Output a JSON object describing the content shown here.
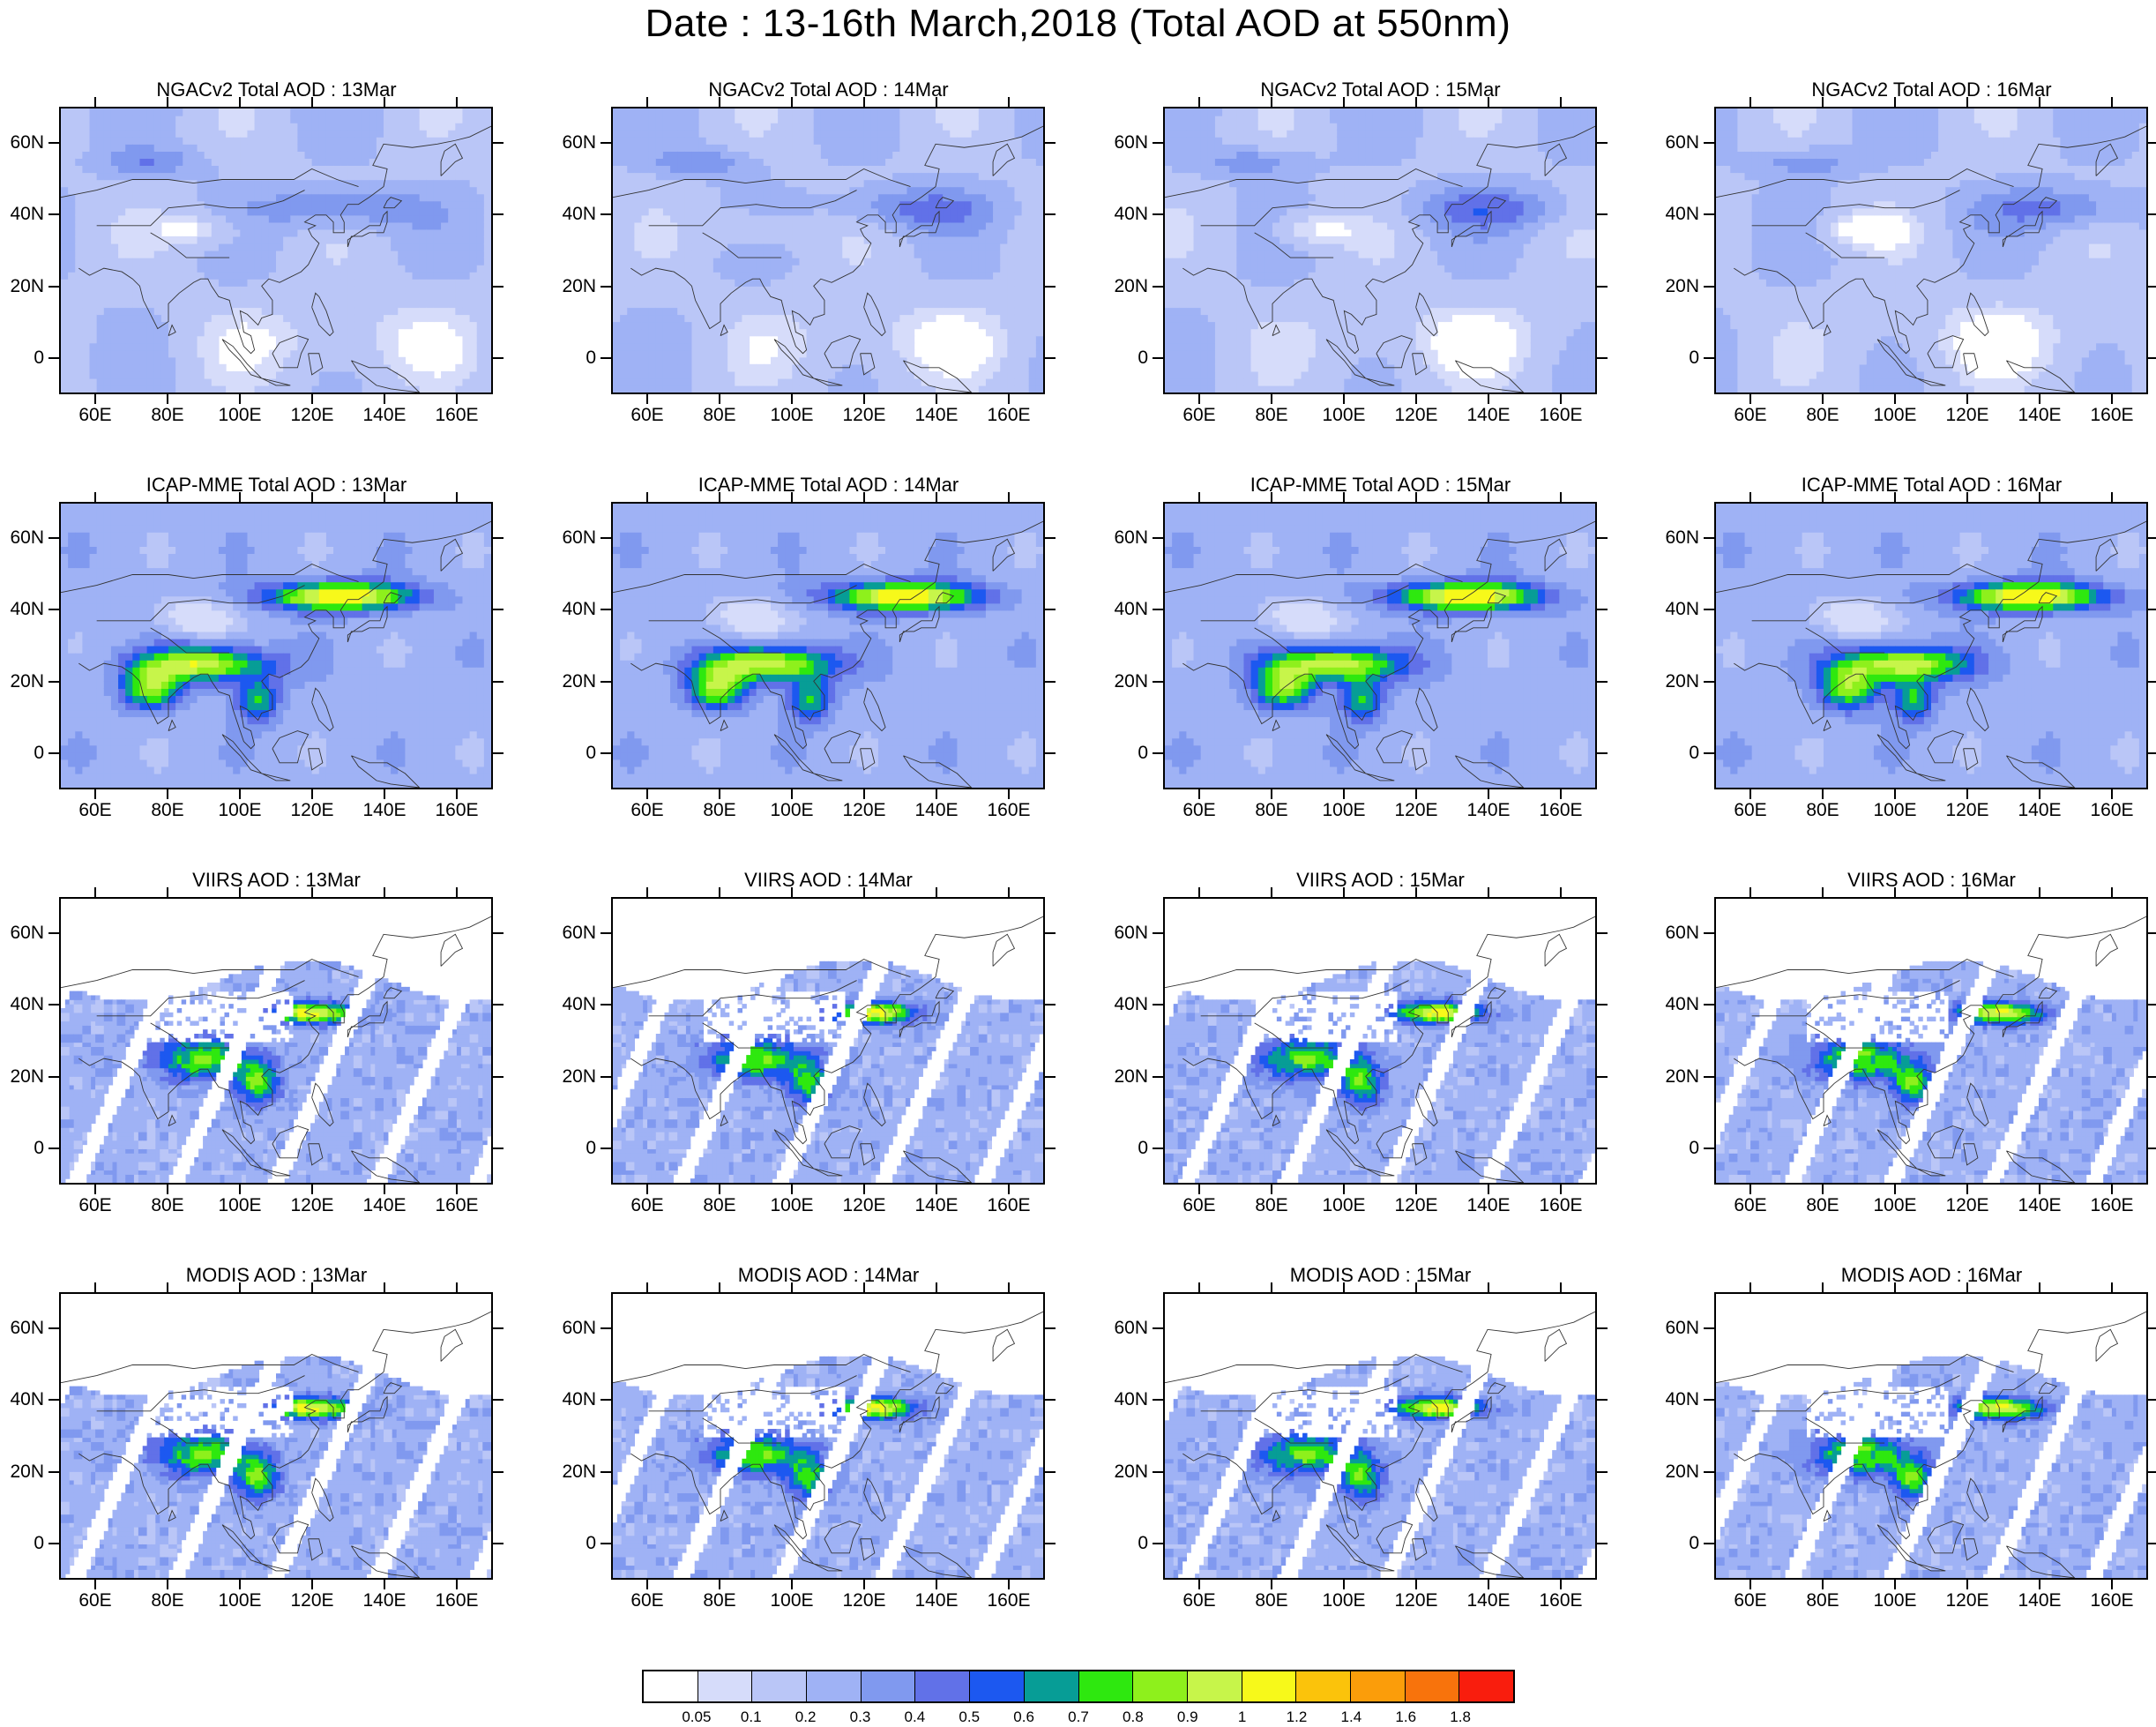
{
  "title": "Date : 13-16th March,2018 (Total AOD at 550nm)",
  "axes": {
    "lon_ticks": [
      "60E",
      "80E",
      "100E",
      "120E",
      "140E",
      "160E"
    ],
    "lat_ticks": [
      "60N",
      "40N",
      "20N",
      "0"
    ],
    "lon_range": [
      50,
      170
    ],
    "lat_range": [
      -10,
      70
    ]
  },
  "panels": [
    {
      "title": "NGACv2 Total AOD : 13Mar",
      "source": "NGACv2",
      "day": "13Mar"
    },
    {
      "title": "NGACv2 Total AOD : 14Mar",
      "source": "NGACv2",
      "day": "14Mar"
    },
    {
      "title": "NGACv2 Total AOD : 15Mar",
      "source": "NGACv2",
      "day": "15Mar"
    },
    {
      "title": "NGACv2 Total AOD : 16Mar",
      "source": "NGACv2",
      "day": "16Mar"
    },
    {
      "title": "ICAP-MME Total AOD : 13Mar",
      "source": "ICAP-MME",
      "day": "13Mar"
    },
    {
      "title": "ICAP-MME Total AOD : 14Mar",
      "source": "ICAP-MME",
      "day": "14Mar"
    },
    {
      "title": "ICAP-MME Total AOD : 15Mar",
      "source": "ICAP-MME",
      "day": "15Mar"
    },
    {
      "title": "ICAP-MME Total AOD : 16Mar",
      "source": "ICAP-MME",
      "day": "16Mar"
    },
    {
      "title": "VIIRS AOD : 13Mar",
      "source": "VIIRS",
      "day": "13Mar"
    },
    {
      "title": "VIIRS AOD : 14Mar",
      "source": "VIIRS",
      "day": "14Mar"
    },
    {
      "title": "VIIRS AOD : 15Mar",
      "source": "VIIRS",
      "day": "15Mar"
    },
    {
      "title": "VIIRS AOD : 16Mar",
      "source": "VIIRS",
      "day": "16Mar"
    },
    {
      "title": "MODIS AOD : 13Mar",
      "source": "MODIS",
      "day": "13Mar"
    },
    {
      "title": "MODIS AOD : 14Mar",
      "source": "MODIS",
      "day": "14Mar"
    },
    {
      "title": "MODIS AOD : 15Mar",
      "source": "MODIS",
      "day": "15Mar"
    },
    {
      "title": "MODIS AOD : 16Mar",
      "source": "MODIS",
      "day": "16Mar"
    }
  ],
  "colorbar": {
    "labels": [
      "0.05",
      "0.1",
      "0.2",
      "0.3",
      "0.4",
      "0.5",
      "0.6",
      "0.7",
      "0.8",
      "0.9",
      "1",
      "1.2",
      "1.4",
      "1.6",
      "1.8"
    ],
    "colors": [
      "#ffffff",
      "#d6dcfa",
      "#bac6f7",
      "#9fb2f5",
      "#8099ef",
      "#6171e8",
      "#1c58f0",
      "#079d96",
      "#2ee80f",
      "#8ef01c",
      "#c7f54a",
      "#f7f91a",
      "#fbc30b",
      "#fb9d0a",
      "#f8730c",
      "#f91d0d"
    ]
  }
}
